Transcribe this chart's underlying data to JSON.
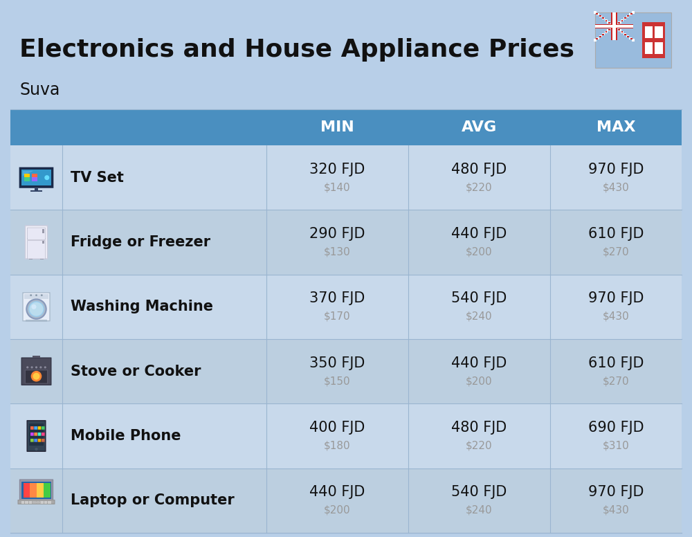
{
  "title_real": "Electronics and House Appliance Prices",
  "subtitle": "Suva",
  "bg_color": "#b8cfe8",
  "header_color": "#4a8fc0",
  "header_text_color": "#ffffff",
  "row_bg_even": "#c8d9eb",
  "row_bg_odd": "#bccfe0",
  "col_headers": [
    "MIN",
    "AVG",
    "MAX"
  ],
  "items": [
    {
      "name": "TV Set",
      "min_fjd": "320 FJD",
      "min_usd": "$140",
      "avg_fjd": "480 FJD",
      "avg_usd": "$220",
      "max_fjd": "970 FJD",
      "max_usd": "$430"
    },
    {
      "name": "Fridge or Freezer",
      "min_fjd": "290 FJD",
      "min_usd": "$130",
      "avg_fjd": "440 FJD",
      "avg_usd": "$200",
      "max_fjd": "610 FJD",
      "max_usd": "$270"
    },
    {
      "name": "Washing Machine",
      "min_fjd": "370 FJD",
      "min_usd": "$170",
      "avg_fjd": "540 FJD",
      "avg_usd": "$240",
      "max_fjd": "970 FJD",
      "max_usd": "$430"
    },
    {
      "name": "Stove or Cooker",
      "min_fjd": "350 FJD",
      "min_usd": "$150",
      "avg_fjd": "440 FJD",
      "avg_usd": "$200",
      "max_fjd": "610 FJD",
      "max_usd": "$270"
    },
    {
      "name": "Mobile Phone",
      "min_fjd": "400 FJD",
      "min_usd": "$180",
      "avg_fjd": "480 FJD",
      "avg_usd": "$220",
      "max_fjd": "690 FJD",
      "max_usd": "$310"
    },
    {
      "name": "Laptop or Computer",
      "min_fjd": "440 FJD",
      "min_usd": "$200",
      "avg_fjd": "540 FJD",
      "avg_usd": "$240",
      "max_fjd": "970 FJD",
      "max_usd": "$430"
    }
  ],
  "divider_color": "#9ab5d0",
  "name_color": "#111111",
  "price_fjd_color": "#111111",
  "price_usd_color": "#999999"
}
